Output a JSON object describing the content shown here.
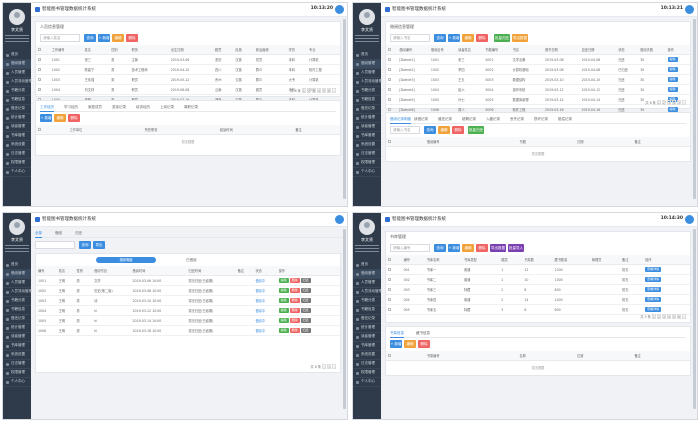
{
  "app": {
    "title": "智能图书管理数据统计系统"
  },
  "clock": {
    "q1": "10:13:20",
    "q2": "10:13:21",
    "q3": "",
    "q4": "10:14:30"
  },
  "user": {
    "name": "李文贤"
  },
  "menu": [
    "首页",
    "借阅管理",
    "人员管理",
    "人员流动管理",
    "书籍分类",
    "书籍信息",
    "借还记录",
    "统计管理",
    "读者管理",
    "书库管理",
    "系统设置",
    "日志管理",
    "权限管理",
    "个人中心"
  ],
  "quads": {
    "q1": {
      "panel_title": "人员信息管理",
      "search_placeholder": "请输入姓名",
      "buttons": [
        "查询",
        "+ 新增",
        "编辑",
        "删除"
      ],
      "columns": [
        "",
        "工作编号",
        "姓名",
        "性别",
        "职务",
        "出生日期",
        "籍贯",
        "民族",
        "政治面貌",
        "学历",
        "专业"
      ],
      "rows": [
        [
          "",
          "1001",
          "张三",
          "男",
          "主管",
          "2019-03-06",
          "重庆",
          "汉族",
          "党员",
          "本科",
          "计算机"
        ],
        [
          "",
          "1002",
          "陈建宁",
          "男",
          "技术工程师",
          "2019-04-10",
          "四川",
          "汉族",
          "群众",
          "本科",
          "软件工程"
        ],
        [
          "",
          "1003",
          "王伟强",
          "男",
          "职员",
          "2019-05-12",
          "贵州",
          "汉族",
          "群众",
          "大专",
          "计算机"
        ],
        [
          "",
          "1004",
          "刘文林",
          "男",
          "职员",
          "2019-06-08",
          "云南",
          "汉族",
          "团员",
          "本科",
          "中文"
        ],
        [
          "",
          "1005",
          "李明",
          "男",
          "职员",
          "2019-07-16",
          "湖南",
          "汉族",
          "群众",
          "本科",
          "计算机"
        ],
        [
          "",
          "1006",
          "王建",
          "男",
          "职员",
          "2019-08-20",
          "湖北",
          "汉族",
          "群众",
          "大专",
          "信息管理"
        ]
      ],
      "pager": "共 6 条",
      "tabs": [
        "工作经历",
        "学习经历",
        "家庭成员",
        "奖惩记录",
        "培训经历",
        "上岗记录",
        "离职记录"
      ],
      "sub_columns": [
        "",
        "工作单位",
        "所任职务",
        "起始时间",
        "备注"
      ],
      "empty": "暂无数据"
    },
    "q2": {
      "panel_title": "借阅信息管理",
      "search_placeholder": "请输入书名",
      "buttons": [
        "查询",
        "+ 新增",
        "编辑",
        "删除",
        "批量归还",
        "导出数据"
      ],
      "columns": [
        "",
        "借阅编号",
        "借阅证号",
        "读者姓名",
        "书籍编号",
        "书名",
        "借书日期",
        "应还日期",
        "状态",
        "借阅天数",
        "操作"
      ],
      "rows": [
        [
          "",
          "[Dotnet1]",
          "1001",
          "张三",
          "S001",
          "文学名著",
          "2019-03-06",
          "2019-04-06",
          "归还",
          "30",
          "编辑"
        ],
        [
          "",
          "[Dotnet2]",
          "1002",
          "李四",
          "S002",
          "计算机基础",
          "2019-03-08",
          "2019-04-08",
          "已归还",
          "30",
          "编辑"
        ],
        [
          "",
          "[Dotnet3]",
          "1003",
          "王五",
          "S003",
          "数据结构",
          "2019-03-10",
          "2019-04-10",
          "归还",
          "30",
          "编辑"
        ],
        [
          "",
          "[Dotnet4]",
          "1004",
          "赵六",
          "S004",
          "操作系统",
          "2019-03-12",
          "2019-04-12",
          "归还",
          "30",
          "编辑"
        ],
        [
          "",
          "[Dotnet5]",
          "1005",
          "孙七",
          "S005",
          "数据库原理",
          "2019-03-14",
          "2019-04-14",
          "归还",
          "30",
          "编辑"
        ],
        [
          "",
          "[Dotnet6]",
          "1006",
          "周八",
          "S006",
          "软件工程",
          "2019-03-16",
          "2019-04-16",
          "归还",
          "30",
          "编辑"
        ]
      ],
      "pager": "共 6 条",
      "tabs": [
        "借阅记录明细",
        "续借记录",
        "催还记录",
        "超期记录",
        "入藏记录",
        "丢失记录",
        "损坏记录",
        "赔偿记录"
      ],
      "sub_columns": [
        "",
        "借阅编号",
        "书籍",
        "日期",
        "备注"
      ],
      "empty": "暂无数据"
    },
    "q3": {
      "tabs": [
        "全部",
        "借阅",
        "归还"
      ],
      "buttons": [
        "查询",
        "导出"
      ],
      "pill": "借阅明细",
      "right_label": "已借阅",
      "columns": [
        "编号",
        "姓名",
        "性别",
        "借阅书目",
        "借阅时间",
        "归还时间",
        "备注",
        "状态",
        "操作"
      ],
      "rows": [
        [
          "1001",
          "王明",
          "男",
          "文学",
          "2019-03-06 10:00",
          "暂无归还(已逾期)",
          "",
          "借阅中",
          ""
        ],
        [
          "1002",
          "王明",
          "男",
          "历史(第二版)",
          "2019-03-08 10:00",
          "暂无归还(已逾期)",
          "",
          "借阅中",
          ""
        ],
        [
          "1003",
          "王明",
          "男",
          "诗",
          "2019-03-10 10:00",
          "暂无归还(已逾期)",
          "",
          "借阅中",
          ""
        ],
        [
          "1004",
          "王明",
          "男",
          "hi",
          "2019-03-12 10:00",
          "暂无归还(已逾期)",
          "",
          "借阅中",
          ""
        ],
        [
          "1005",
          "王明",
          "男",
          "hi",
          "2019-03-14 10:00",
          "暂无归还(已逾期)",
          "",
          "借阅中",
          ""
        ],
        [
          "1006",
          "王明",
          "男",
          "hi",
          "2019-03-16 10:00",
          "暂无归还(已逾期)",
          "",
          "借阅中",
          ""
        ]
      ],
      "row_actions": [
        "编辑",
        "删除",
        "归还"
      ],
      "pager": "共 6 条"
    },
    "q4": {
      "panel_title": "书库管理",
      "search_placeholder": "请输入编号",
      "buttons": [
        "查询",
        "+ 新增",
        "编辑",
        "删除",
        "导出数据",
        "批量导入"
      ],
      "columns": [
        "",
        "编号",
        "书库名称",
        "书库类型",
        "楼层",
        "书架数",
        "藏书数量",
        "管理员",
        "备注",
        "操作"
      ],
      "rows": [
        [
          "",
          "001",
          "书库一",
          "普通",
          "1",
          "12",
          "1200",
          "",
          "暂无",
          "查看详情"
        ],
        [
          "",
          "002",
          "书库二",
          "普通",
          "1",
          "10",
          "1000",
          "",
          "暂无",
          "查看详情"
        ],
        [
          "",
          "003",
          "书库三",
          "特藏",
          "2",
          "8",
          "800",
          "",
          "暂无",
          "查看详情"
        ],
        [
          "",
          "004",
          "书库四",
          "普通",
          "2",
          "14",
          "1400",
          "",
          "暂无",
          "查看详情"
        ],
        [
          "",
          "005",
          "书库五",
          "特藏",
          "3",
          "6",
          "600",
          "",
          "暂无",
          "查看详情"
        ]
      ],
      "pager": "共 5 条",
      "tabs": [
        "书架信息",
        "藏书信息"
      ],
      "sub_buttons": [
        "+ 新增",
        "编辑",
        "删除"
      ],
      "sub_columns": [
        "",
        "书架编号",
        "名称",
        "位置",
        "备注"
      ],
      "empty": "暂无数据"
    }
  },
  "colors": {
    "sidebar": "#2f3b4a",
    "primary": "#3b8de0",
    "danger": "#f06464",
    "warning": "#f0a33a",
    "success": "#4cb050",
    "purple": "#7a3fb0"
  }
}
